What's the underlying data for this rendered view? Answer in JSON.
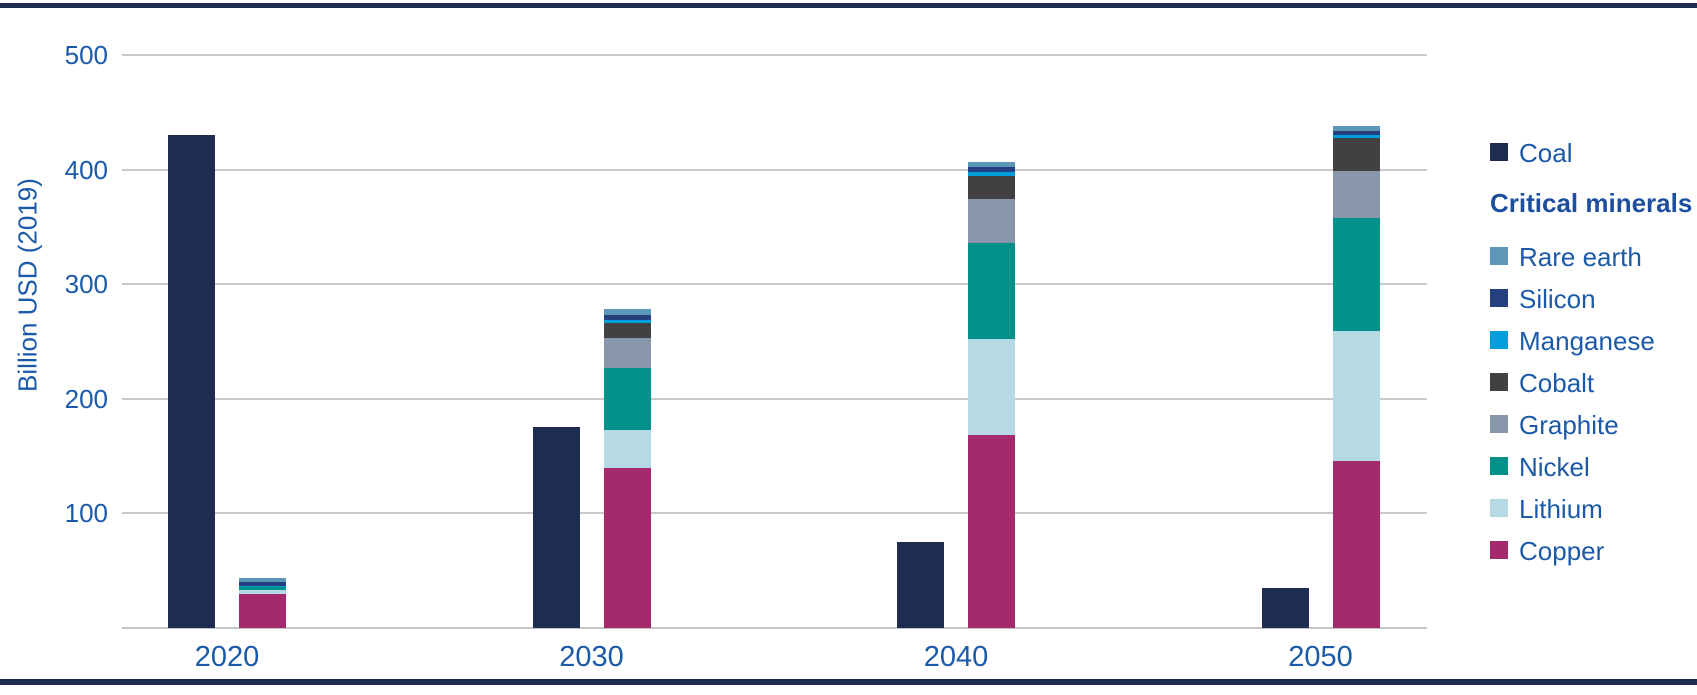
{
  "chart_data": {
    "type": "bar",
    "subtype": "grouped-stacked",
    "title": "",
    "ylabel": "Billion USD (2019)",
    "yticks": [
      100,
      200,
      300,
      400,
      500
    ],
    "ylim": [
      0,
      540
    ],
    "grid": "horizontal",
    "legend_position": "right",
    "categories": [
      "2020",
      "2030",
      "2040",
      "2050"
    ],
    "series": [
      {
        "name": "Coal",
        "group": "coal",
        "color": "#1F2C51",
        "values": [
          430,
          175,
          75,
          35
        ]
      },
      {
        "name": "Copper",
        "group": "minerals",
        "color": "#A52A6D",
        "values": [
          30,
          140,
          168,
          146
        ]
      },
      {
        "name": "Lithium",
        "group": "minerals",
        "color": "#B5DAE3",
        "values": [
          3,
          33,
          84,
          113
        ]
      },
      {
        "name": "Nickel",
        "group": "minerals",
        "color": "#00918B",
        "values": [
          3,
          54,
          84,
          99
        ]
      },
      {
        "name": "Graphite",
        "group": "minerals",
        "color": "#8897A9",
        "values": [
          0,
          26,
          38,
          41
        ]
      },
      {
        "name": "Cobalt",
        "group": "minerals",
        "color": "#414144",
        "values": [
          0,
          13,
          20,
          29
        ]
      },
      {
        "name": "Manganese",
        "group": "minerals",
        "color": "#009FDC",
        "values": [
          1,
          3,
          4,
          2
        ]
      },
      {
        "name": "Silicon",
        "group": "minerals",
        "color": "#24407F",
        "values": [
          3,
          4,
          4,
          4
        ]
      },
      {
        "name": "Rare earth",
        "group": "minerals",
        "color": "#5C96B8",
        "values": [
          4,
          5,
          5,
          4
        ]
      }
    ],
    "legend": {
      "coal_label": "Coal",
      "header": "Critical minerals",
      "items": [
        "Rare earth",
        "Silicon",
        "Manganese",
        "Cobalt",
        "Graphite",
        "Nickel",
        "Lithium",
        "Copper"
      ]
    },
    "colors": {
      "text": "#1B5AA9",
      "header_text": "#1D4F9E",
      "gridline": "#CBCBCB",
      "baseline": "#C6C6C6",
      "border": "#1F2C51",
      "background": "#FFFFFF"
    }
  }
}
